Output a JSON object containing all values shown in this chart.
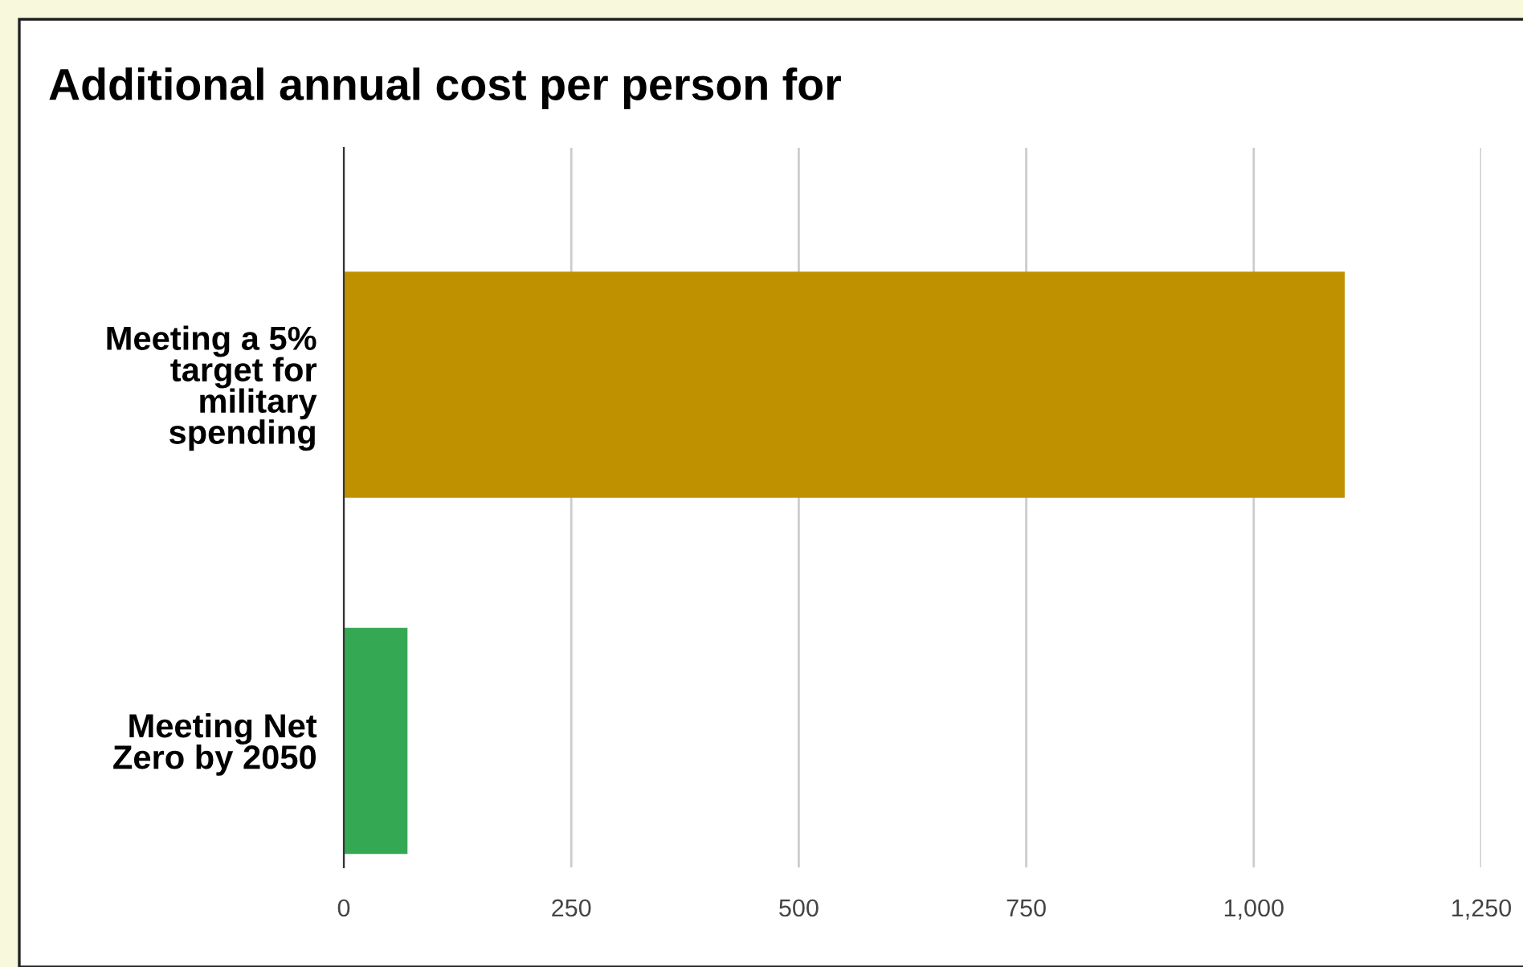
{
  "chart_data": {
    "type": "bar",
    "orientation": "horizontal",
    "title": "Additional annual cost per person for",
    "categories": [
      "Meeting a 5%\ntarget for\nmilitary\nspending",
      "Meeting Net\nZero by 2050"
    ],
    "values": [
      1100,
      70
    ],
    "colors": [
      "#bf9000",
      "#34a853"
    ],
    "xlim": [
      0,
      1250
    ],
    "xticks": [
      0,
      250,
      500,
      750,
      {
        "value": 1000,
        "label": "1,000"
      },
      {
        "value": 1250,
        "label": "1,250"
      }
    ],
    "grid": "x"
  }
}
